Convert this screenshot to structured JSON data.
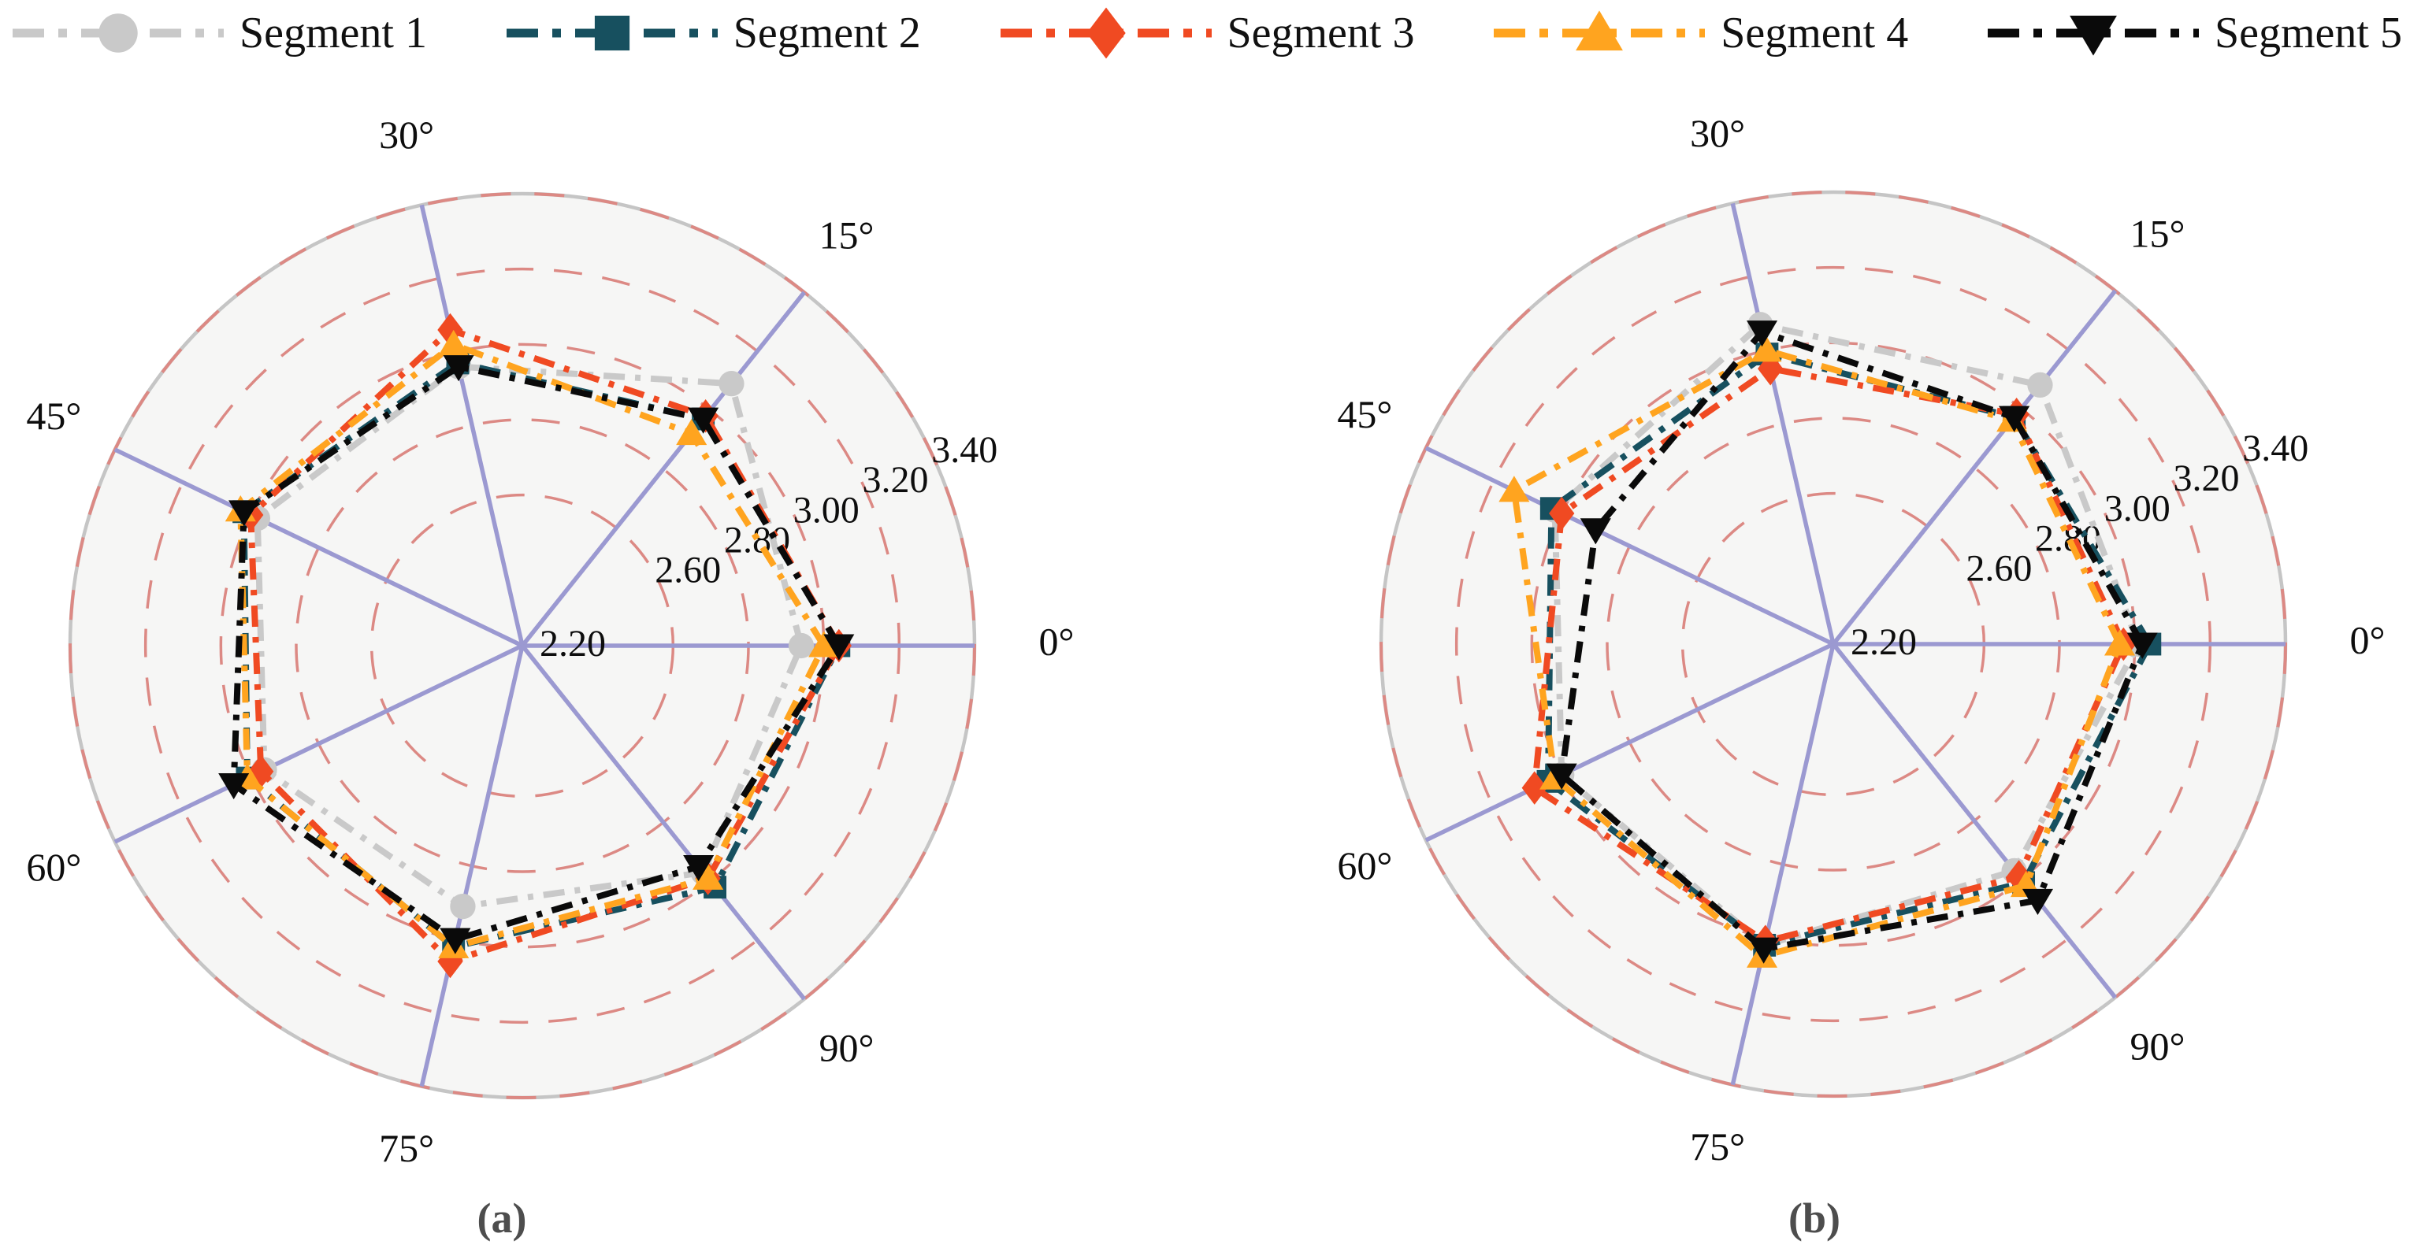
{
  "figure": {
    "captions": {
      "a": "(a)",
      "b": "(b)"
    },
    "legend_items": [
      {
        "label": "Segment 1",
        "color": "#c9c9c9",
        "marker": "circle"
      },
      {
        "label": "Segment 2",
        "color": "#17505f",
        "marker": "square"
      },
      {
        "label": "Segment 3",
        "color": "#f04a22",
        "marker": "diamond"
      },
      {
        "label": "Segment 4",
        "color": "#ffa41f",
        "marker": "triangle-up"
      },
      {
        "label": "Segment 5",
        "color": "#0a0a0a",
        "marker": "triangle-down"
      }
    ]
  },
  "style": {
    "spoke_color": "#9b99d1",
    "ring_color": "#dc8984",
    "outer_circle_color": "#c5c5c5",
    "polar_fill": "#f6f6f5",
    "label_color": "#0d0d0d"
  },
  "chart_data": [
    {
      "type": "radar",
      "id": "a",
      "caption": "(a)",
      "angular_labels": [
        "0°",
        "15°",
        "30°",
        "45°",
        "60°",
        "75°",
        "90°"
      ],
      "radial": {
        "min": 2.2,
        "max": 3.4,
        "center_label": "2.20",
        "ring_values": [
          2.6,
          2.8,
          3.0,
          3.2,
          3.4
        ],
        "ring_labels": [
          "2.60",
          "2.80",
          "3.00",
          "3.20",
          "3.40"
        ],
        "grid": "dashed"
      },
      "legend_position": "top",
      "series": [
        {
          "name": "Segment 1",
          "values": [
            2.94,
            3.09,
            2.96,
            2.98,
            2.96,
            2.91,
            2.97
          ]
        },
        {
          "name": "Segment 2",
          "values": [
            3.04,
            2.97,
            2.97,
            3.02,
            3.01,
            3.02,
            3.02
          ]
        },
        {
          "name": "Segment 3",
          "values": [
            3.04,
            2.98,
            3.06,
            3.0,
            2.97,
            3.06,
            2.99
          ]
        },
        {
          "name": "Segment 4",
          "values": [
            3.0,
            2.92,
            3.02,
            3.03,
            3.01,
            3.02,
            2.99
          ]
        },
        {
          "name": "Segment 5",
          "values": [
            3.04,
            2.97,
            2.96,
            3.02,
            3.05,
            3.0,
            2.95
          ]
        }
      ]
    },
    {
      "type": "radar",
      "id": "b",
      "caption": "(b)",
      "angular_labels": [
        "0°",
        "15°",
        "30°",
        "45°",
        "60°",
        "75°",
        "90°"
      ],
      "radial": {
        "min": 2.2,
        "max": 3.4,
        "center_label": "2.20",
        "ring_values": [
          2.6,
          2.8,
          3.0,
          3.2,
          3.4
        ],
        "ring_labels": [
          "2.60",
          "2.80",
          "3.00",
          "3.20",
          "3.40"
        ],
        "grid": "dashed"
      },
      "legend_position": "top",
      "series": [
        {
          "name": "Segment 1",
          "values": [
            3.01,
            3.08,
            3.07,
            3.02,
            3.0,
            3.02,
            2.97
          ]
        },
        {
          "name": "Segment 2",
          "values": [
            3.04,
            2.97,
            2.99,
            3.03,
            3.04,
            3.02,
            3.01
          ]
        },
        {
          "name": "Segment 3",
          "values": [
            2.97,
            2.98,
            2.95,
            3.0,
            3.08,
            3.01,
            2.99
          ]
        },
        {
          "name": "Segment 4",
          "values": [
            2.96,
            2.96,
            3.0,
            3.14,
            3.02,
            3.05,
            3.02
          ]
        },
        {
          "name": "Segment 5",
          "values": [
            3.02,
            2.97,
            3.05,
            2.9,
            3.0,
            3.03,
            3.07
          ]
        }
      ]
    }
  ]
}
